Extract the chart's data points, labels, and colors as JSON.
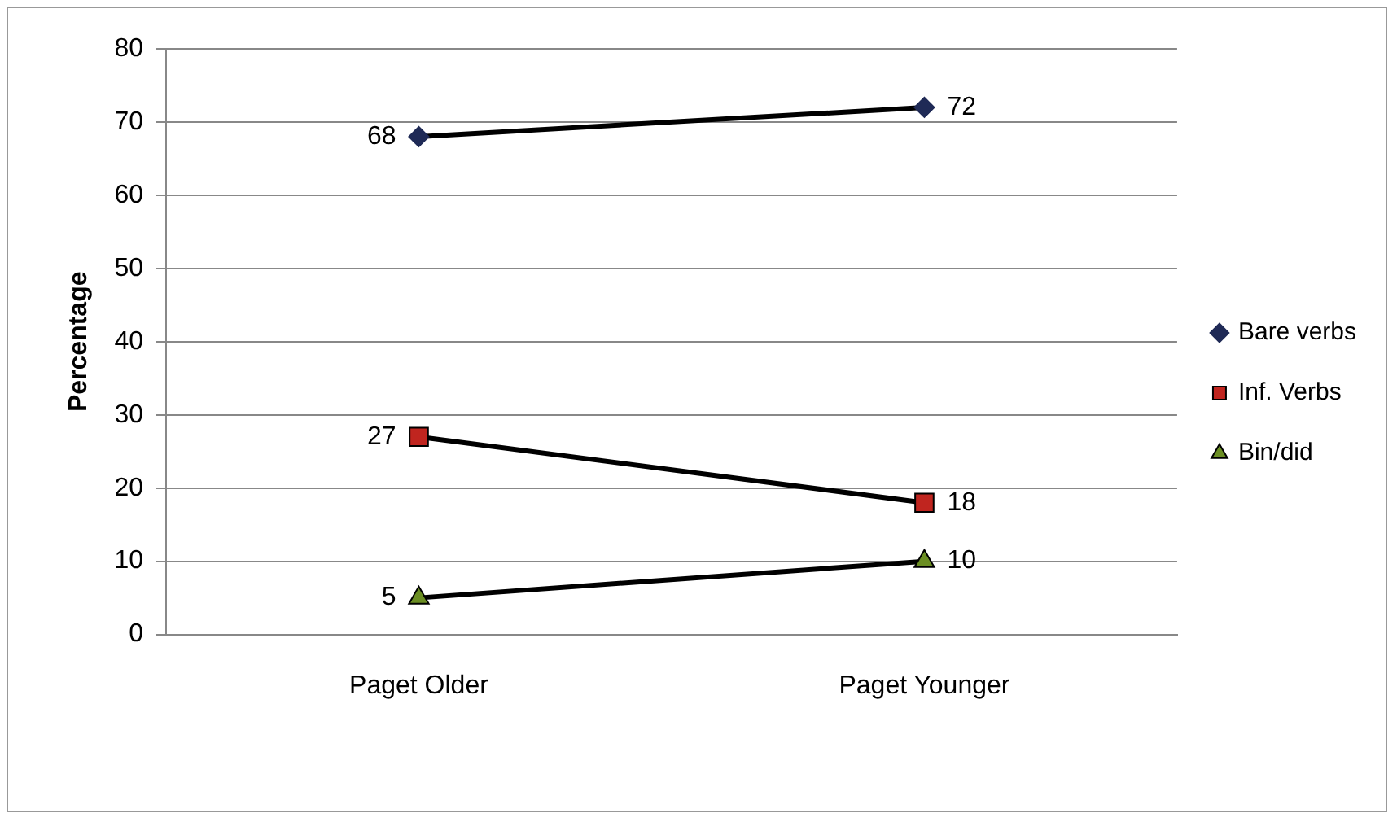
{
  "chart_data": {
    "type": "line",
    "ylabel": "Percentage",
    "categories": [
      "Paget Older",
      "Paget Younger"
    ],
    "series": [
      {
        "name": "Bare verbs",
        "color": "#1f2a56",
        "marker": "diamond",
        "values": [
          68,
          72
        ]
      },
      {
        "name": "Inf. Verbs",
        "color": "#c0251f",
        "marker": "square",
        "values": [
          27,
          18
        ]
      },
      {
        "name": "Bin/did",
        "color": "#6b8e23",
        "marker": "triangle",
        "values": [
          5,
          10
        ]
      }
    ],
    "ylim": [
      0,
      80
    ],
    "yticks": [
      0,
      10,
      20,
      30,
      40,
      50,
      60,
      70,
      80
    ],
    "grid": "y",
    "legend": "right",
    "data_labels": true
  }
}
